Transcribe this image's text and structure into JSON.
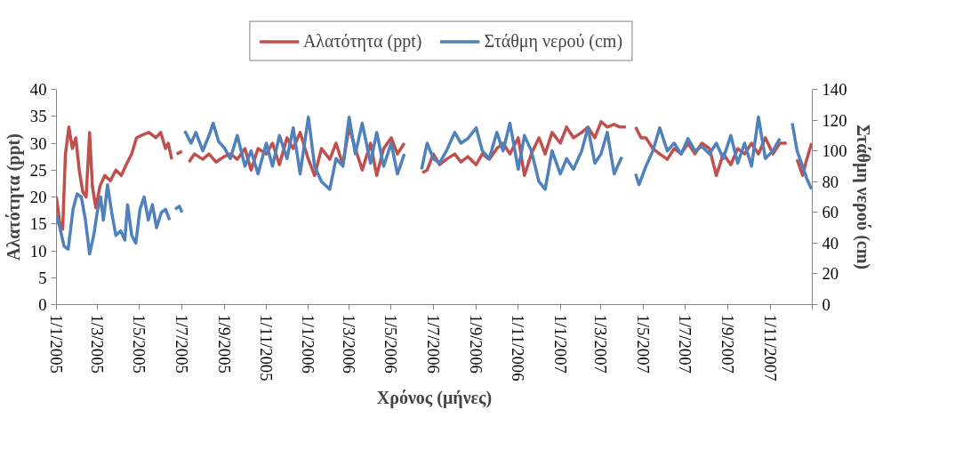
{
  "chart_data": {
    "type": "line",
    "xlabel": "Χρόνος (μήνες)",
    "ylabel": "Αλατότητα (ppt)",
    "y2label": "Στάθμη νερού (cm)",
    "xlim": [
      "2005-01-01",
      "2008-01-01"
    ],
    "ylim": [
      0,
      40
    ],
    "yticks": [
      0,
      5,
      10,
      15,
      20,
      25,
      30,
      35,
      40
    ],
    "y2lim": [
      0,
      140
    ],
    "y2ticks": [
      0,
      20,
      40,
      60,
      80,
      100,
      120,
      140
    ],
    "xticks": [
      {
        "value": "2005-01-01",
        "label": "1/1/2005"
      },
      {
        "value": "2005-03-01",
        "label": "1/3/2005"
      },
      {
        "value": "2005-05-01",
        "label": "1/5/2005"
      },
      {
        "value": "2005-07-01",
        "label": "1/7/2005"
      },
      {
        "value": "2005-09-01",
        "label": "1/9/2005"
      },
      {
        "value": "2005-11-01",
        "label": "1/11/2005"
      },
      {
        "value": "2006-01-01",
        "label": "1/1/2006"
      },
      {
        "value": "2006-03-01",
        "label": "1/3/2006"
      },
      {
        "value": "2006-05-01",
        "label": "1/5/2006"
      },
      {
        "value": "2006-07-01",
        "label": "1/7/2006"
      },
      {
        "value": "2006-09-01",
        "label": "1/9/2006"
      },
      {
        "value": "2006-11-01",
        "label": "1/11/2006"
      },
      {
        "value": "2007-01-01",
        "label": "1/1/2007"
      },
      {
        "value": "2007-03-01",
        "label": "1/3/2007"
      },
      {
        "value": "2007-05-01",
        "label": "1/5/2007"
      },
      {
        "value": "2007-07-01",
        "label": "1/7/2007"
      },
      {
        "value": "2007-09-01",
        "label": "1/9/2007"
      },
      {
        "value": "2007-11-01",
        "label": "1/11/2007"
      },
      {
        "value": "2008-01-01",
        "label": null
      }
    ],
    "grid": false,
    "legend": "top",
    "marker": "none",
    "line_style": "solid",
    "series": [
      {
        "name": "Αλατότητα (ppt)",
        "color": "#c0504d",
        "x": [
          "2005-01-01",
          "2005-01-06",
          "2005-01-10",
          "2005-01-14",
          "2005-01-19",
          "2005-01-24",
          "2005-01-29",
          "2005-02-03",
          "2005-02-08",
          "2005-02-13",
          "2005-02-18",
          "2005-02-22",
          "2005-02-27",
          "2005-03-05",
          "2005-03-12",
          "2005-03-20",
          "2005-03-28",
          "2005-04-05",
          "2005-04-12",
          "2005-04-20",
          "2005-04-27",
          "2005-05-05",
          "2005-05-15",
          "2005-05-25",
          "2005-06-01",
          "2005-06-08",
          "2005-06-12",
          "2005-06-17",
          "2005-06-20",
          "2005-06-24",
          "2005-07-02",
          "2005-07-06",
          "2005-07-12",
          "2005-07-20",
          "2005-08-01",
          "2005-08-10",
          "2005-08-20",
          "2005-09-01",
          "2005-09-10",
          "2005-09-20",
          "2005-10-01",
          "2005-10-10",
          "2005-10-20",
          "2005-11-01",
          "2005-11-10",
          "2005-11-20",
          "2005-12-01",
          "2005-12-10",
          "2005-12-20",
          "2006-01-01",
          "2006-01-10",
          "2006-01-20",
          "2006-02-01",
          "2006-02-10",
          "2006-02-20",
          "2006-03-01",
          "2006-03-10",
          "2006-03-20",
          "2006-04-01",
          "2006-04-10",
          "2006-04-20",
          "2006-05-01",
          "2006-05-10",
          "2006-05-20",
          "2006-05-26",
          "2006-06-15",
          "2006-06-22",
          "2006-07-01",
          "2006-07-10",
          "2006-07-20",
          "2006-08-01",
          "2006-08-10",
          "2006-08-20",
          "2006-09-01",
          "2006-09-10",
          "2006-09-20",
          "2006-10-01",
          "2006-10-10",
          "2006-10-20",
          "2006-11-01",
          "2006-11-10",
          "2006-11-20",
          "2006-12-01",
          "2006-12-10",
          "2006-12-20",
          "2007-01-01",
          "2007-01-10",
          "2007-01-20",
          "2007-02-01",
          "2007-02-10",
          "2007-02-20",
          "2007-03-01",
          "2007-03-10",
          "2007-03-20",
          "2007-03-28",
          "2007-04-06",
          "2007-04-12",
          "2007-04-20",
          "2007-04-28",
          "2007-05-05",
          "2007-05-15",
          "2007-05-25",
          "2007-06-05",
          "2007-06-15",
          "2007-06-25",
          "2007-07-05",
          "2007-07-15",
          "2007-07-25",
          "2007-08-05",
          "2007-08-15",
          "2007-08-25",
          "2007-09-05",
          "2007-09-15",
          "2007-09-25",
          "2007-10-05",
          "2007-10-15",
          "2007-10-25",
          "2007-11-05",
          "2007-11-15",
          "2007-11-25",
          "2007-11-30",
          "2007-12-10",
          "2007-12-18",
          "2007-12-24",
          "2007-12-31"
        ],
        "values": [
          20,
          15,
          14,
          28,
          33,
          29,
          31,
          25,
          21,
          20,
          32,
          22,
          18,
          22,
          24,
          23,
          25,
          24,
          26,
          28,
          31,
          31.5,
          32,
          31,
          32,
          29,
          30,
          27,
          null,
          28,
          28.5,
          null,
          26.5,
          28,
          27,
          28,
          26.5,
          27.5,
          28,
          27,
          29,
          25,
          29,
          28,
          30,
          26,
          31,
          29,
          32,
          27,
          24,
          29,
          27,
          30,
          26,
          33,
          29,
          25,
          30,
          24,
          29,
          31,
          28,
          30,
          null,
          24.5,
          25,
          28,
          26,
          27,
          28,
          26.5,
          27.5,
          26,
          28,
          27,
          29,
          30,
          28,
          31,
          24,
          28,
          31,
          28,
          32,
          30,
          33,
          31,
          32,
          33,
          31,
          34,
          33,
          33.5,
          33,
          33,
          null,
          33,
          31,
          31,
          29,
          28,
          27,
          29,
          28,
          30,
          28,
          30,
          29,
          24,
          28,
          26,
          29,
          28,
          30,
          28,
          31,
          28,
          30,
          30,
          null,
          27,
          24,
          27,
          30
        ]
      },
      {
        "name": "Στάθμη νερού (cm)",
        "color": "#4f81bd",
        "axis": "y2",
        "x": [
          "2005-01-01",
          "2005-01-06",
          "2005-01-12",
          "2005-01-18",
          "2005-01-25",
          "2005-01-31",
          "2005-02-06",
          "2005-02-12",
          "2005-02-18",
          "2005-02-24",
          "2005-03-01",
          "2005-03-06",
          "2005-03-10",
          "2005-03-16",
          "2005-03-22",
          "2005-03-28",
          "2005-04-04",
          "2005-04-10",
          "2005-04-14",
          "2005-04-20",
          "2005-04-26",
          "2005-05-02",
          "2005-05-08",
          "2005-05-14",
          "2005-05-20",
          "2005-05-26",
          "2005-06-02",
          "2005-06-08",
          "2005-06-14",
          "2005-06-18",
          "2005-06-22",
          "2005-06-28",
          "2005-07-02",
          "2005-07-04",
          "2005-07-06",
          "2005-07-15",
          "2005-07-22",
          "2005-08-01",
          "2005-08-10",
          "2005-08-16",
          "2005-08-24",
          "2005-09-01",
          "2005-09-10",
          "2005-09-20",
          "2005-10-01",
          "2005-10-10",
          "2005-10-20",
          "2005-11-01",
          "2005-11-10",
          "2005-11-20",
          "2005-12-01",
          "2005-12-10",
          "2005-12-20",
          "2006-01-01",
          "2006-01-10",
          "2006-01-20",
          "2006-02-01",
          "2006-02-10",
          "2006-02-20",
          "2006-03-01",
          "2006-03-10",
          "2006-03-20",
          "2006-04-01",
          "2006-04-10",
          "2006-04-20",
          "2006-05-01",
          "2006-05-10",
          "2006-05-20",
          "2006-05-26",
          "2006-06-14",
          "2006-06-22",
          "2006-07-01",
          "2006-07-10",
          "2006-07-20",
          "2006-08-01",
          "2006-08-10",
          "2006-08-20",
          "2006-09-01",
          "2006-09-10",
          "2006-09-20",
          "2006-10-01",
          "2006-10-10",
          "2006-10-20",
          "2006-11-01",
          "2006-11-10",
          "2006-11-20",
          "2006-12-01",
          "2006-12-10",
          "2006-12-20",
          "2007-01-01",
          "2007-01-10",
          "2007-01-20",
          "2007-02-01",
          "2007-02-10",
          "2007-02-20",
          "2007-03-01",
          "2007-03-10",
          "2007-03-20",
          "2007-03-31",
          "2007-04-05",
          "2007-04-20",
          "2007-04-25",
          "2007-05-05",
          "2007-05-15",
          "2007-05-25",
          "2007-06-05",
          "2007-06-15",
          "2007-06-25",
          "2007-07-05",
          "2007-07-15",
          "2007-07-25",
          "2007-08-05",
          "2007-08-15",
          "2007-08-25",
          "2007-09-05",
          "2007-09-15",
          "2007-09-25",
          "2007-10-05",
          "2007-10-15",
          "2007-10-25",
          "2007-11-05",
          "2007-11-15",
          "2007-11-20",
          "2007-12-03",
          "2007-12-10",
          "2007-12-18",
          "2007-12-24",
          "2007-12-31"
        ],
        "values": [
          58,
          50,
          38,
          36,
          62,
          72,
          70,
          55,
          33,
          45,
          60,
          70,
          55,
          78,
          60,
          45,
          48,
          42,
          65,
          45,
          40,
          62,
          70,
          55,
          65,
          50,
          60,
          62,
          55,
          null,
          62,
          64,
          60,
          null,
          113,
          105,
          112,
          100,
          110,
          118,
          106,
          102,
          95,
          110,
          90,
          100,
          85,
          105,
          90,
          110,
          95,
          115,
          85,
          122,
          90,
          80,
          75,
          95,
          90,
          122,
          98,
          118,
          92,
          112,
          90,
          105,
          85,
          98,
          null,
          88,
          105,
          95,
          92,
          100,
          112,
          105,
          108,
          115,
          100,
          95,
          112,
          100,
          118,
          88,
          110,
          100,
          80,
          75,
          100,
          85,
          95,
          88,
          100,
          115,
          92,
          98,
          112,
          85,
          96,
          null,
          85,
          78,
          90,
          100,
          115,
          100,
          105,
          98,
          108,
          100,
          103,
          98,
          105,
          95,
          110,
          92,
          105,
          90,
          122,
          95,
          100,
          108,
          null,
          118,
          100,
          90,
          82,
          75
        ]
      }
    ]
  }
}
